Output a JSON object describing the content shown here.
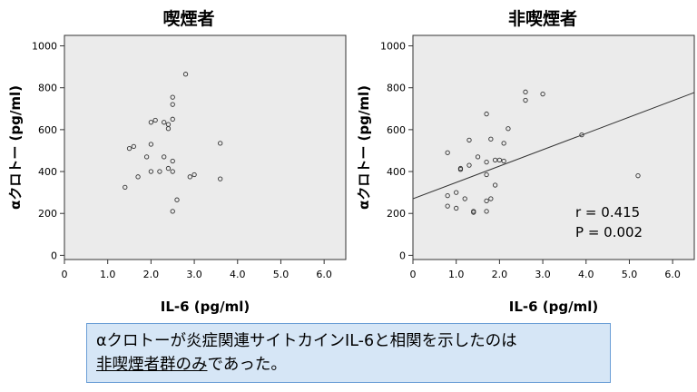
{
  "chart_data": [
    {
      "type": "scatter",
      "title": "喫煙者",
      "xlabel": "IL-6 (pg/ml)",
      "ylabel": "αクロトー (pg/ml)",
      "xlim": [
        0,
        6.5
      ],
      "ylim": [
        -20,
        1050
      ],
      "xticks": [
        {
          "value": 0,
          "label": "0"
        },
        {
          "value": 1,
          "label": "1.0"
        },
        {
          "value": 2,
          "label": "2.0"
        },
        {
          "value": 3,
          "label": "3.0"
        },
        {
          "value": 4,
          "label": "4.0"
        },
        {
          "value": 5,
          "label": "5.0"
        },
        {
          "value": 6,
          "label": "6.0"
        }
      ],
      "yticks": [
        {
          "value": 0,
          "label": "0"
        },
        {
          "value": 200,
          "label": "200"
        },
        {
          "value": 400,
          "label": "400"
        },
        {
          "value": 600,
          "label": "600"
        },
        {
          "value": 800,
          "label": "800"
        },
        {
          "value": 1000,
          "label": "1000"
        }
      ],
      "grid": false,
      "points": [
        {
          "x": 1.4,
          "y": 325
        },
        {
          "x": 1.5,
          "y": 510
        },
        {
          "x": 1.6,
          "y": 520
        },
        {
          "x": 1.7,
          "y": 375
        },
        {
          "x": 1.9,
          "y": 470
        },
        {
          "x": 2.0,
          "y": 400
        },
        {
          "x": 2.0,
          "y": 530
        },
        {
          "x": 2.0,
          "y": 635
        },
        {
          "x": 2.1,
          "y": 645
        },
        {
          "x": 2.2,
          "y": 400
        },
        {
          "x": 2.3,
          "y": 470
        },
        {
          "x": 2.3,
          "y": 635
        },
        {
          "x": 2.4,
          "y": 415
        },
        {
          "x": 2.4,
          "y": 605
        },
        {
          "x": 2.4,
          "y": 625
        },
        {
          "x": 2.5,
          "y": 210
        },
        {
          "x": 2.5,
          "y": 400
        },
        {
          "x": 2.5,
          "y": 450
        },
        {
          "x": 2.5,
          "y": 650
        },
        {
          "x": 2.5,
          "y": 720
        },
        {
          "x": 2.5,
          "y": 755
        },
        {
          "x": 2.6,
          "y": 265
        },
        {
          "x": 2.8,
          "y": 865
        },
        {
          "x": 2.9,
          "y": 375
        },
        {
          "x": 3.0,
          "y": 385
        },
        {
          "x": 3.6,
          "y": 365
        },
        {
          "x": 3.6,
          "y": 535
        }
      ]
    },
    {
      "type": "scatter",
      "title": "非喫煙者",
      "xlabel": "IL-6 (pg/ml)",
      "ylabel": "αクロトー (pg/ml)",
      "xlim": [
        0,
        6.5
      ],
      "ylim": [
        -20,
        1050
      ],
      "xticks": [
        {
          "value": 0,
          "label": "0"
        },
        {
          "value": 1,
          "label": "1.0"
        },
        {
          "value": 2,
          "label": "2.0"
        },
        {
          "value": 3,
          "label": "3.0"
        },
        {
          "value": 4,
          "label": "4.0"
        },
        {
          "value": 5,
          "label": "5.0"
        },
        {
          "value": 6,
          "label": "6.0"
        }
      ],
      "yticks": [
        {
          "value": 0,
          "label": "0"
        },
        {
          "value": 200,
          "label": "200"
        },
        {
          "value": 400,
          "label": "400"
        },
        {
          "value": 600,
          "label": "600"
        },
        {
          "value": 800,
          "label": "800"
        },
        {
          "value": 1000,
          "label": "1000"
        }
      ],
      "grid": false,
      "points": [
        {
          "x": 0.8,
          "y": 235
        },
        {
          "x": 0.8,
          "y": 285
        },
        {
          "x": 0.8,
          "y": 490
        },
        {
          "x": 1.0,
          "y": 225
        },
        {
          "x": 1.0,
          "y": 300
        },
        {
          "x": 1.1,
          "y": 410
        },
        {
          "x": 1.1,
          "y": 415
        },
        {
          "x": 1.2,
          "y": 270
        },
        {
          "x": 1.3,
          "y": 430
        },
        {
          "x": 1.3,
          "y": 550
        },
        {
          "x": 1.4,
          "y": 205
        },
        {
          "x": 1.4,
          "y": 210
        },
        {
          "x": 1.5,
          "y": 470
        },
        {
          "x": 1.7,
          "y": 210
        },
        {
          "x": 1.7,
          "y": 260
        },
        {
          "x": 1.7,
          "y": 385
        },
        {
          "x": 1.7,
          "y": 445
        },
        {
          "x": 1.7,
          "y": 675
        },
        {
          "x": 1.8,
          "y": 270
        },
        {
          "x": 1.8,
          "y": 555
        },
        {
          "x": 1.9,
          "y": 335
        },
        {
          "x": 1.9,
          "y": 455
        },
        {
          "x": 2.0,
          "y": 455
        },
        {
          "x": 2.1,
          "y": 450
        },
        {
          "x": 2.1,
          "y": 535
        },
        {
          "x": 2.2,
          "y": 605
        },
        {
          "x": 2.6,
          "y": 740
        },
        {
          "x": 2.6,
          "y": 780
        },
        {
          "x": 3.0,
          "y": 770
        },
        {
          "x": 3.9,
          "y": 575
        },
        {
          "x": 5.2,
          "y": 380
        }
      ],
      "regression": {
        "intercept": 270,
        "slope": 78
      },
      "annotations": [
        "r = 0.415",
        "P = 0.002"
      ]
    }
  ],
  "caption": {
    "line1": "αクロトーが炎症関連サイトカインIL-6と相関を示したのは",
    "line2_underlined": "非喫煙者群のみ",
    "line2_rest": "であった。"
  }
}
